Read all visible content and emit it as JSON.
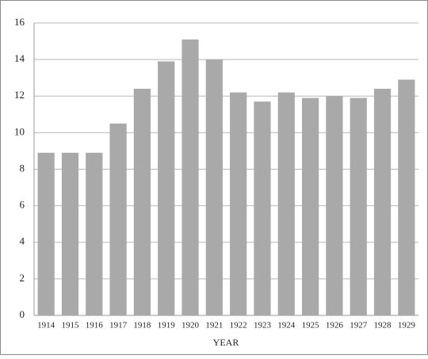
{
  "chart_data": {
    "type": "bar",
    "x_label": "YEAR",
    "categories": [
      "1914",
      "1915",
      "1916",
      "1917",
      "1918",
      "1919",
      "1920",
      "1921",
      "1922",
      "1923",
      "1924",
      "1925",
      "1926",
      "1927",
      "1928",
      "1929"
    ],
    "values": [
      8.9,
      8.9,
      8.9,
      10.5,
      12.4,
      13.9,
      15.1,
      14.0,
      12.2,
      11.7,
      12.2,
      11.9,
      12.0,
      11.9,
      12.4,
      12.9
    ],
    "color": "#a9a9a9",
    "ylim": [
      0,
      16
    ],
    "yticks": [
      0,
      2,
      4,
      6,
      8,
      10,
      12,
      14,
      16
    ],
    "grid": true
  }
}
